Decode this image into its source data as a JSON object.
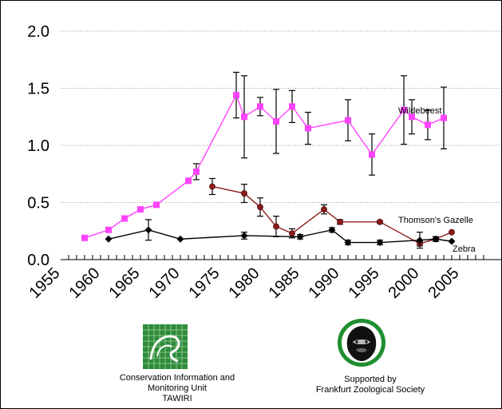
{
  "chart_data": {
    "type": "line",
    "xlim": [
      1955,
      2008
    ],
    "ylim": [
      0,
      2
    ],
    "x_ticks": [
      "1955",
      "1960",
      "1965",
      "1970",
      "1975",
      "1980",
      "1985",
      "1990",
      "1995",
      "2000",
      "2005"
    ],
    "y_ticks": [
      "0.0",
      "0.5",
      "1.0",
      "1.5",
      "2.0"
    ],
    "grid": "horizontal dotted",
    "series": [
      {
        "name": "Wildebeest",
        "color": "#ff44ff",
        "marker": "square",
        "points": [
          {
            "x": 1958,
            "y": 0.19
          },
          {
            "x": 1961,
            "y": 0.26
          },
          {
            "x": 1963,
            "y": 0.36
          },
          {
            "x": 1965,
            "y": 0.44
          },
          {
            "x": 1967,
            "y": 0.48
          },
          {
            "x": 1971,
            "y": 0.69
          },
          {
            "x": 1972,
            "y": 0.77,
            "err": 0.07
          },
          {
            "x": 1977,
            "y": 1.44,
            "err": 0.2
          },
          {
            "x": 1978,
            "y": 1.25,
            "err": 0.36
          },
          {
            "x": 1980,
            "y": 1.34,
            "err": 0.08
          },
          {
            "x": 1982,
            "y": 1.21,
            "err": 0.28
          },
          {
            "x": 1984,
            "y": 1.34,
            "err": 0.14
          },
          {
            "x": 1986,
            "y": 1.15,
            "err": 0.14
          },
          {
            "x": 1991,
            "y": 1.22,
            "err": 0.18
          },
          {
            "x": 1994,
            "y": 0.92,
            "err": 0.18
          },
          {
            "x": 1998,
            "y": 1.31,
            "err": 0.3
          },
          {
            "x": 1999,
            "y": 1.25,
            "err": 0.15
          },
          {
            "x": 2001,
            "y": 1.18,
            "err": 0.13
          },
          {
            "x": 2003,
            "y": 1.24,
            "err": 0.27
          }
        ]
      },
      {
        "name": "Thomson's Gazelle",
        "color": "#8b1a1a",
        "marker": "circle",
        "points": [
          {
            "x": 1974,
            "y": 0.64,
            "err": 0.07
          },
          {
            "x": 1978,
            "y": 0.58,
            "err": 0.08
          },
          {
            "x": 1980,
            "y": 0.46,
            "err": 0.08
          },
          {
            "x": 1982,
            "y": 0.29,
            "err": 0.09
          },
          {
            "x": 1984,
            "y": 0.23,
            "err": 0.04
          },
          {
            "x": 1988,
            "y": 0.44,
            "err": 0.04
          },
          {
            "x": 1990,
            "y": 0.33,
            "err": 0.02
          },
          {
            "x": 1995,
            "y": 0.33,
            "err": 0.01
          },
          {
            "x": 2000,
            "y": 0.14,
            "err": 0.02
          },
          {
            "x": 2002,
            "y": 0.18,
            "err": 0.02
          },
          {
            "x": 2004,
            "y": 0.24
          }
        ]
      },
      {
        "name": "Zebra",
        "color": "#000000",
        "marker": "diamond",
        "points": [
          {
            "x": 1961,
            "y": 0.18
          },
          {
            "x": 1966,
            "y": 0.26,
            "err": 0.09
          },
          {
            "x": 1970,
            "y": 0.18
          },
          {
            "x": 1978,
            "y": 0.21,
            "err": 0.03
          },
          {
            "x": 1985,
            "y": 0.2,
            "err": 0.02
          },
          {
            "x": 1989,
            "y": 0.26,
            "err": 0.02
          },
          {
            "x": 1991,
            "y": 0.15,
            "err": 0.02
          },
          {
            "x": 1995,
            "y": 0.15,
            "err": 0.02
          },
          {
            "x": 2000,
            "y": 0.17,
            "err": 0.07
          },
          {
            "x": 2002,
            "y": 0.18,
            "err": 0.02
          },
          {
            "x": 2004,
            "y": 0.16
          }
        ]
      }
    ]
  },
  "credits": {
    "left": {
      "line1": "Conservation Information and",
      "line2": "Monitoring Unit",
      "line3": "TAWIRI"
    },
    "right": {
      "line1": "Supported by",
      "line2": "Frankfurt Zoological Society"
    }
  }
}
